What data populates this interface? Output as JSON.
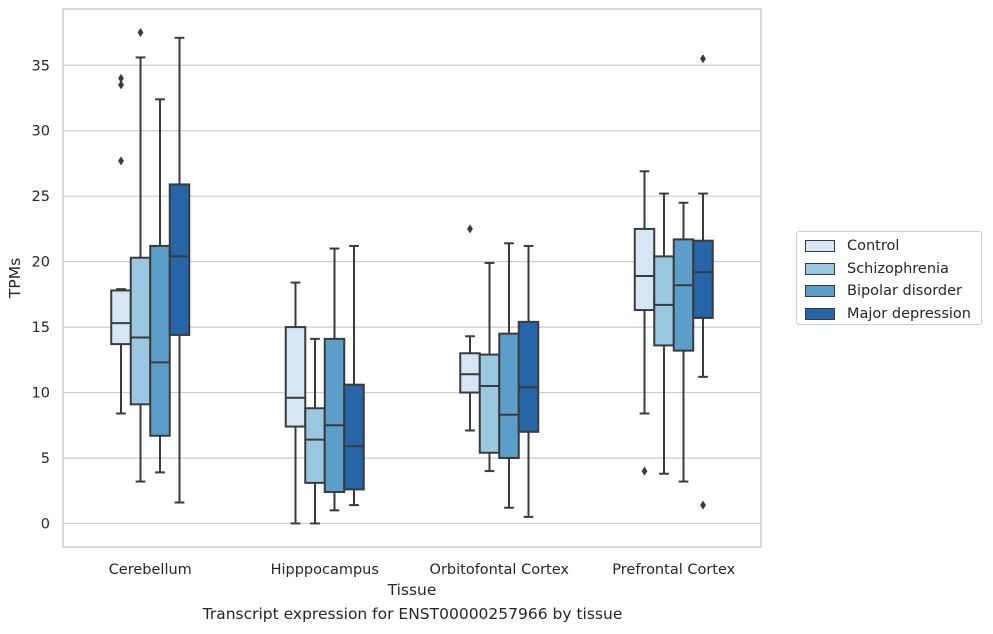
{
  "chart_data": {
    "type": "box",
    "title": "",
    "caption": "Transcript expression for ENST00000257966 by tissue",
    "xlabel": "Tissue",
    "ylabel": "TPMs",
    "ylim": [
      -1.8,
      39.3
    ],
    "yticks": [
      0,
      5,
      10,
      15,
      20,
      25,
      30,
      35
    ],
    "grid": "horizontal",
    "legend_position": "right",
    "categories": [
      "Cerebellum",
      "Hipppocampus",
      "Orbitofontal Cortex",
      "Prefrontal Cortex"
    ],
    "series": [
      {
        "name": "Control",
        "color": "#d6e6f4",
        "boxes": [
          {
            "whislo": 8.4,
            "q1": 13.7,
            "med": 15.3,
            "q3": 17.8,
            "whishi": 17.9,
            "fliers": [
              27.7,
              33.5,
              34.0
            ]
          },
          {
            "whislo": 0.0,
            "q1": 7.4,
            "med": 9.6,
            "q3": 15.0,
            "whishi": 18.4,
            "fliers": []
          },
          {
            "whislo": 7.1,
            "q1": 10.0,
            "med": 11.4,
            "q3": 13.0,
            "whishi": 14.3,
            "fliers": [
              22.5
            ]
          },
          {
            "whislo": 8.4,
            "q1": 16.3,
            "med": 18.9,
            "q3": 22.5,
            "whishi": 26.9,
            "fliers": [
              4.0
            ]
          }
        ]
      },
      {
        "name": "Schizophrenia",
        "color": "#9ac8e0",
        "boxes": [
          {
            "whislo": 3.2,
            "q1": 9.1,
            "med": 14.2,
            "q3": 20.3,
            "whishi": 35.6,
            "fliers": [
              37.5
            ]
          },
          {
            "whislo": 0.0,
            "q1": 3.1,
            "med": 6.4,
            "q3": 8.8,
            "whishi": 14.1,
            "fliers": []
          },
          {
            "whislo": 4.0,
            "q1": 5.4,
            "med": 10.5,
            "q3": 12.9,
            "whishi": 19.9,
            "fliers": []
          },
          {
            "whislo": 3.8,
            "q1": 13.6,
            "med": 16.7,
            "q3": 20.4,
            "whishi": 25.2,
            "fliers": []
          }
        ]
      },
      {
        "name": "Bipolar disorder",
        "color": "#5a9ec9",
        "boxes": [
          {
            "whislo": 3.9,
            "q1": 6.7,
            "med": 12.3,
            "q3": 21.2,
            "whishi": 32.4,
            "fliers": []
          },
          {
            "whislo": 1.0,
            "q1": 2.4,
            "med": 7.5,
            "q3": 14.1,
            "whishi": 21.0,
            "fliers": []
          },
          {
            "whislo": 1.2,
            "q1": 5.0,
            "med": 8.3,
            "q3": 14.5,
            "whishi": 21.4,
            "fliers": []
          },
          {
            "whislo": 3.2,
            "q1": 13.2,
            "med": 18.2,
            "q3": 21.7,
            "whishi": 24.5,
            "fliers": []
          }
        ]
      },
      {
        "name": "Major depression",
        "color": "#2565a8",
        "boxes": [
          {
            "whislo": 1.6,
            "q1": 14.4,
            "med": 20.4,
            "q3": 25.9,
            "whishi": 37.1,
            "fliers": []
          },
          {
            "whislo": 1.4,
            "q1": 2.6,
            "med": 5.9,
            "q3": 10.6,
            "whishi": 21.2,
            "fliers": []
          },
          {
            "whislo": 0.5,
            "q1": 7.0,
            "med": 10.4,
            "q3": 15.4,
            "whishi": 21.2,
            "fliers": []
          },
          {
            "whislo": 11.2,
            "q1": 15.7,
            "med": 19.2,
            "q3": 21.6,
            "whishi": 25.2,
            "fliers": [
              1.4,
              35.5
            ]
          }
        ]
      }
    ]
  }
}
